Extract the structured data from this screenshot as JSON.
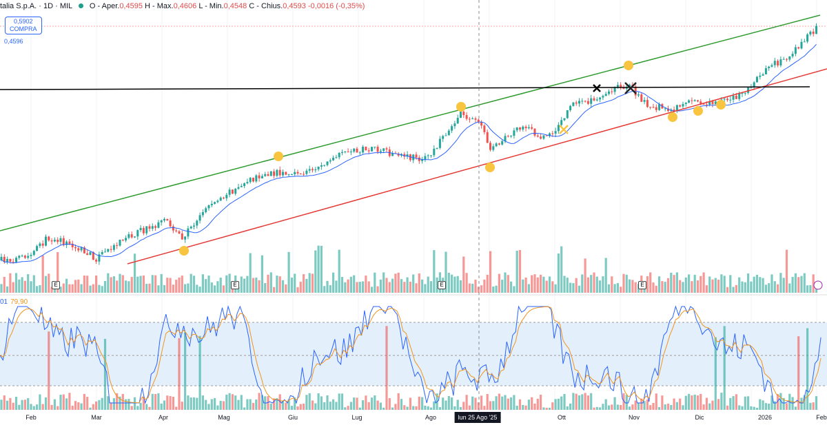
{
  "header": {
    "symbol": "talia S.p.A.",
    "interval": "1D",
    "exchange": "MIL",
    "open_label": "O - Aper.",
    "open": "0,4595",
    "high_label": "H - Max.",
    "high": "0,4606",
    "low_label": "L - Min.",
    "low": "0,4548",
    "close_label": "C - Chius.",
    "close": "0,4593",
    "change": "-0,0016 (-0,35%)"
  },
  "buy_button": {
    "price": "0,5902",
    "label": "COMPRA"
  },
  "ma_value": "0,4596",
  "stoch": {
    "k": "01",
    "d": "79,90"
  },
  "earnings_badge": "E",
  "axis": {
    "months": [
      "Feb",
      "Mar",
      "Apr",
      "Mag",
      "Giu",
      "Lug",
      "Ago",
      "Ott",
      "Nov",
      "Dic",
      "2026",
      "Feb"
    ],
    "crosshair": "lun 25 Ago '25"
  },
  "colors": {
    "up": "#26a69a",
    "down": "#ef5350",
    "ma": "#2962ff",
    "upper_channel": "#2e9b2e",
    "lower_channel": "#e53935",
    "resistance": "#000000",
    "marker": "#f9c440"
  }
}
